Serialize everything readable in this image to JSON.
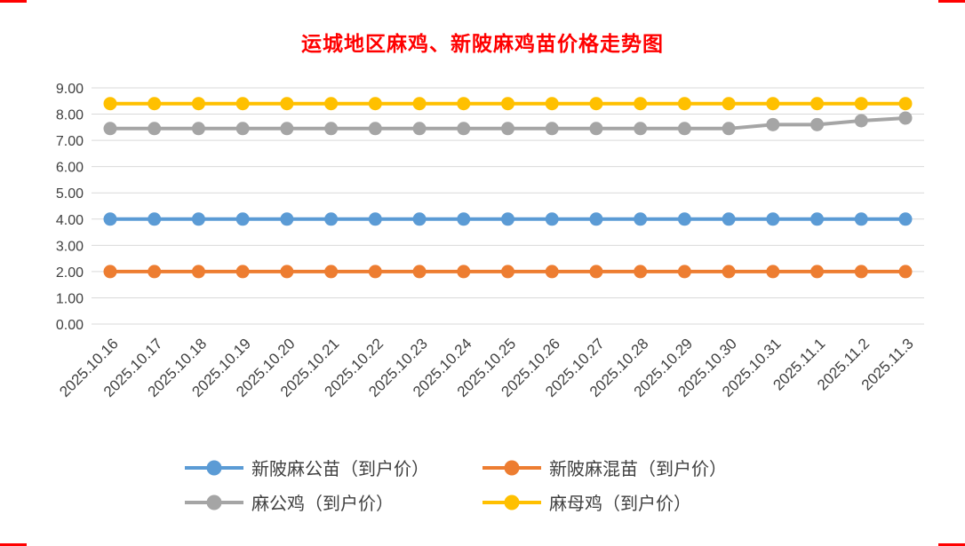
{
  "chart_data": {
    "type": "line",
    "title": "运城地区麻鸡、新陂麻鸡苗价格走势图",
    "title_color": "#FF0000",
    "xlabel": "",
    "ylabel": "",
    "ylim": [
      0,
      9
    ],
    "ytick_step": 1,
    "ytick_labels": [
      "0.00",
      "1.00",
      "2.00",
      "3.00",
      "4.00",
      "5.00",
      "6.00",
      "7.00",
      "8.00",
      "9.00"
    ],
    "grid": true,
    "legend_position": "bottom",
    "categories": [
      "2025.10.16",
      "2025.10.17",
      "2025.10.18",
      "2025.10.19",
      "2025.10.20",
      "2025.10.21",
      "2025.10.22",
      "2025.10.23",
      "2025.10.24",
      "2025.10.25",
      "2025.10.26",
      "2025.10.27",
      "2025.10.28",
      "2025.10.29",
      "2025.10.30",
      "2025.10.31",
      "2025.11.1",
      "2025.11.2",
      "2025.11.3"
    ],
    "series": [
      {
        "name": "新陂麻公苗（到户价）",
        "color": "#5B9BD5",
        "values": [
          4.0,
          4.0,
          4.0,
          4.0,
          4.0,
          4.0,
          4.0,
          4.0,
          4.0,
          4.0,
          4.0,
          4.0,
          4.0,
          4.0,
          4.0,
          4.0,
          4.0,
          4.0,
          4.0
        ]
      },
      {
        "name": "新陂麻混苗（到户价）",
        "color": "#ED7D31",
        "values": [
          2.0,
          2.0,
          2.0,
          2.0,
          2.0,
          2.0,
          2.0,
          2.0,
          2.0,
          2.0,
          2.0,
          2.0,
          2.0,
          2.0,
          2.0,
          2.0,
          2.0,
          2.0,
          2.0
        ]
      },
      {
        "name": "麻公鸡（到户价）",
        "color": "#A5A5A5",
        "values": [
          7.45,
          7.45,
          7.45,
          7.45,
          7.45,
          7.45,
          7.45,
          7.45,
          7.45,
          7.45,
          7.45,
          7.45,
          7.45,
          7.45,
          7.45,
          7.6,
          7.6,
          7.75,
          7.85
        ]
      },
      {
        "name": "麻母鸡（到户价）",
        "color": "#FFC000",
        "values": [
          8.4,
          8.4,
          8.4,
          8.4,
          8.4,
          8.4,
          8.4,
          8.4,
          8.4,
          8.4,
          8.4,
          8.4,
          8.4,
          8.4,
          8.4,
          8.4,
          8.4,
          8.4,
          8.4
        ]
      }
    ],
    "gridline_color": "#D9D9D9",
    "axis_text_color": "#404040"
  },
  "decor": {
    "page_break_mark_color": "#FF0000"
  }
}
